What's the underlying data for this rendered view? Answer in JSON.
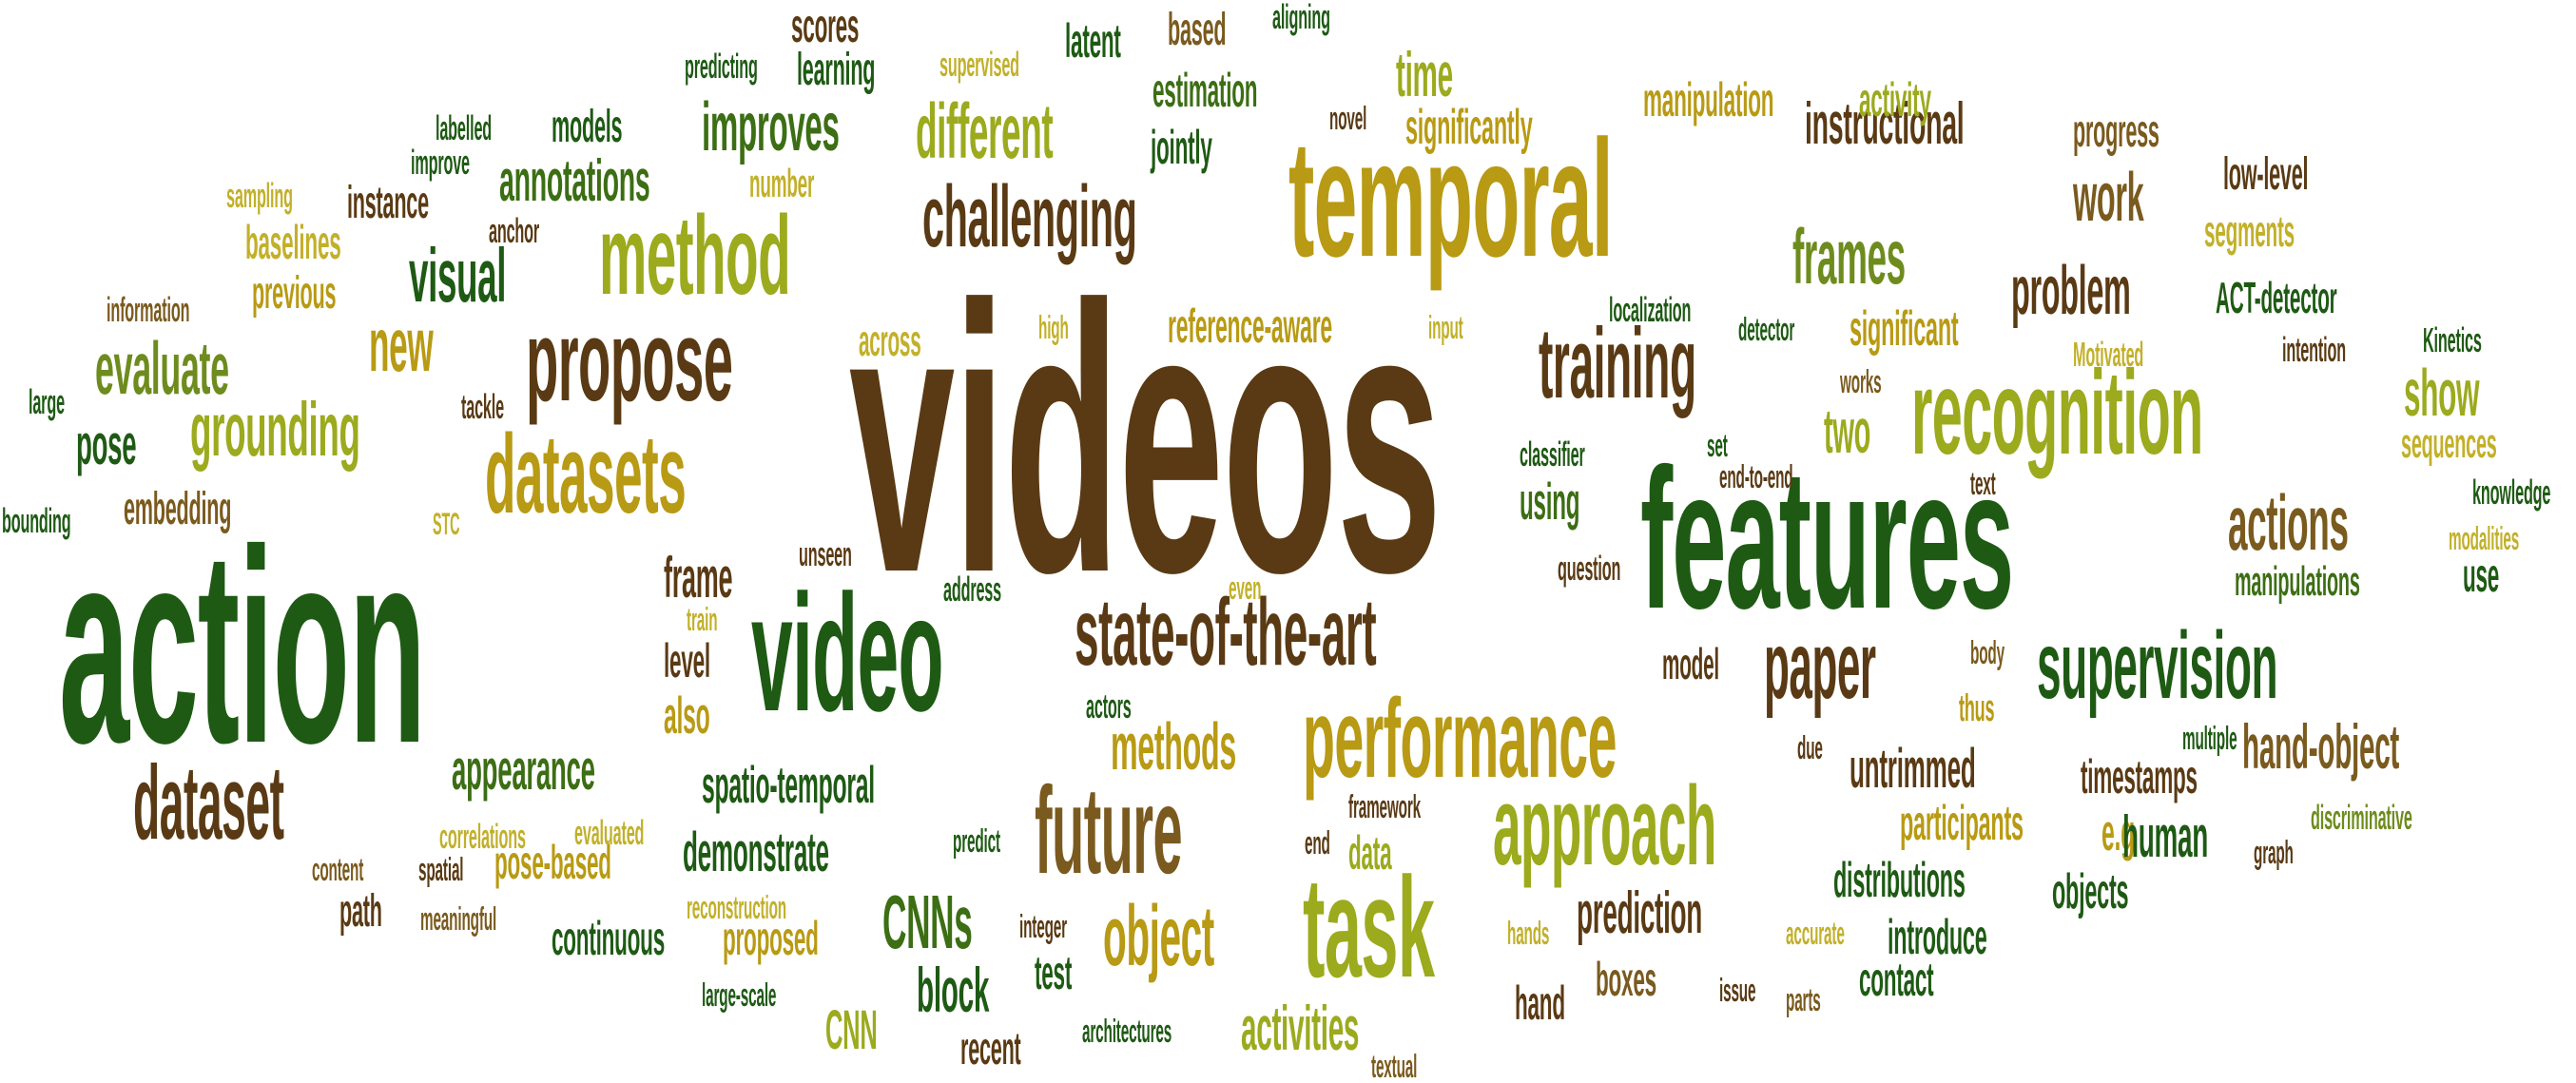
{
  "palette": {
    "dark_brown": "#5a3a14",
    "medium_brown": "#7a5a1e",
    "dark_green": "#1e5a14",
    "medium_green": "#3c6e14",
    "olive_green": "#6e8c1e",
    "lime": "#9caa1e",
    "gold": "#b89a14",
    "khaki": "#c2b02a"
  },
  "words": [
    {
      "text": "videos",
      "color": "dark_brown"
    },
    {
      "text": "action",
      "color": "dark_green"
    },
    {
      "text": "features",
      "color": "dark_green"
    },
    {
      "text": "temporal",
      "color": "gold"
    },
    {
      "text": "video",
      "color": "dark_green"
    },
    {
      "text": "recognition",
      "color": "lime"
    },
    {
      "text": "performance",
      "color": "gold"
    },
    {
      "text": "approach",
      "color": "lime"
    },
    {
      "text": "future",
      "color": "medium_brown"
    },
    {
      "text": "task",
      "color": "lime"
    },
    {
      "text": "propose",
      "color": "dark_brown"
    },
    {
      "text": "datasets",
      "color": "gold"
    },
    {
      "text": "method",
      "color": "lime"
    },
    {
      "text": "state-of-the-art",
      "color": "dark_brown"
    },
    {
      "text": "supervision",
      "color": "dark_green"
    },
    {
      "text": "dataset",
      "color": "dark_brown"
    },
    {
      "text": "challenging",
      "color": "dark_brown"
    },
    {
      "text": "training",
      "color": "dark_brown"
    },
    {
      "text": "paper",
      "color": "dark_brown"
    },
    {
      "text": "actions",
      "color": "medium_brown"
    },
    {
      "text": "frames",
      "color": "olive_green"
    },
    {
      "text": "different",
      "color": "lime"
    },
    {
      "text": "object",
      "color": "gold"
    },
    {
      "text": "grounding",
      "color": "lime"
    },
    {
      "text": "evaluate",
      "color": "olive_green"
    },
    {
      "text": "visual",
      "color": "dark_green"
    },
    {
      "text": "problem",
      "color": "dark_brown"
    },
    {
      "text": "instructional",
      "color": "dark_brown"
    },
    {
      "text": "work",
      "color": "medium_brown"
    },
    {
      "text": "show",
      "color": "lime"
    },
    {
      "text": "new",
      "color": "gold"
    },
    {
      "text": "improves",
      "color": "medium_green"
    },
    {
      "text": "annotations",
      "color": "medium_green"
    },
    {
      "text": "appearance",
      "color": "medium_green"
    },
    {
      "text": "spatio-temporal",
      "color": "dark_green"
    },
    {
      "text": "methods",
      "color": "gold"
    },
    {
      "text": "untrimmed",
      "color": "dark_brown"
    },
    {
      "text": "hand-object",
      "color": "medium_brown"
    },
    {
      "text": "timestamps",
      "color": "dark_brown"
    },
    {
      "text": "participants",
      "color": "gold"
    },
    {
      "text": "e.g",
      "color": "gold"
    },
    {
      "text": "human",
      "color": "dark_green"
    },
    {
      "text": "distributions",
      "color": "dark_green"
    },
    {
      "text": "prediction",
      "color": "dark_brown"
    },
    {
      "text": "introduce",
      "color": "dark_green"
    },
    {
      "text": "objects",
      "color": "dark_green"
    },
    {
      "text": "contact",
      "color": "dark_green"
    },
    {
      "text": "boxes",
      "color": "medium_brown"
    },
    {
      "text": "hand",
      "color": "dark_brown"
    },
    {
      "text": "activities",
      "color": "lime"
    },
    {
      "text": "CNNs",
      "color": "medium_green"
    },
    {
      "text": "block",
      "color": "dark_green"
    },
    {
      "text": "CNN",
      "color": "lime"
    },
    {
      "text": "recent",
      "color": "dark_brown"
    },
    {
      "text": "test",
      "color": "dark_green"
    },
    {
      "text": "demonstrate",
      "color": "dark_green"
    },
    {
      "text": "proposed",
      "color": "gold"
    },
    {
      "text": "continuous",
      "color": "dark_green"
    },
    {
      "text": "pose-based",
      "color": "gold"
    },
    {
      "text": "path",
      "color": "dark_brown"
    },
    {
      "text": "frame",
      "color": "dark_brown"
    },
    {
      "text": "level",
      "color": "dark_brown"
    },
    {
      "text": "also",
      "color": "gold"
    },
    {
      "text": "pose",
      "color": "dark_green"
    },
    {
      "text": "embedding",
      "color": "medium_brown"
    },
    {
      "text": "baselines",
      "color": "khaki"
    },
    {
      "text": "previous",
      "color": "gold"
    },
    {
      "text": "instance",
      "color": "dark_brown"
    },
    {
      "text": "models",
      "color": "dark_green"
    },
    {
      "text": "learning",
      "color": "dark_green"
    },
    {
      "text": "scores",
      "color": "dark_brown"
    },
    {
      "text": "latent",
      "color": "dark_green"
    },
    {
      "text": "based",
      "color": "medium_brown"
    },
    {
      "text": "estimation",
      "color": "medium_green"
    },
    {
      "text": "jointly",
      "color": "dark_green"
    },
    {
      "text": "time",
      "color": "lime"
    },
    {
      "text": "significantly",
      "color": "gold"
    },
    {
      "text": "manipulation",
      "color": "gold"
    },
    {
      "text": "activity",
      "color": "lime"
    },
    {
      "text": "progress",
      "color": "medium_brown"
    },
    {
      "text": "low-level",
      "color": "dark_brown"
    },
    {
      "text": "segments",
      "color": "khaki"
    },
    {
      "text": "ACT-detector",
      "color": "dark_green"
    },
    {
      "text": "significant",
      "color": "gold"
    },
    {
      "text": "two",
      "color": "lime"
    },
    {
      "text": "sequences",
      "color": "khaki"
    },
    {
      "text": "manipulations",
      "color": "medium_green"
    },
    {
      "text": "use",
      "color": "dark_green"
    },
    {
      "text": "thus",
      "color": "gold"
    },
    {
      "text": "reference-aware",
      "color": "gold"
    },
    {
      "text": "across",
      "color": "khaki"
    },
    {
      "text": "using",
      "color": "medium_green"
    },
    {
      "text": "model",
      "color": "dark_brown"
    },
    {
      "text": "data",
      "color": "lime"
    }
  ],
  "small_words": [
    {
      "text": "sampling",
      "color": "khaki"
    },
    {
      "text": "labelled",
      "color": "dark_green"
    },
    {
      "text": "improve",
      "color": "dark_green"
    },
    {
      "text": "information",
      "color": "medium_brown"
    },
    {
      "text": "large",
      "color": "dark_green"
    },
    {
      "text": "tackle",
      "color": "dark_brown"
    },
    {
      "text": "bounding",
      "color": "dark_green"
    },
    {
      "text": "STC",
      "color": "khaki"
    },
    {
      "text": "anchor",
      "color": "dark_brown"
    },
    {
      "text": "predicting",
      "color": "dark_green"
    },
    {
      "text": "supervised",
      "color": "khaki"
    },
    {
      "text": "aligning",
      "color": "dark_green"
    },
    {
      "text": "novel",
      "color": "dark_brown"
    },
    {
      "text": "number",
      "color": "khaki"
    },
    {
      "text": "high",
      "color": "khaki"
    },
    {
      "text": "input",
      "color": "khaki"
    },
    {
      "text": "localization",
      "color": "dark_green"
    },
    {
      "text": "detector",
      "color": "dark_green"
    },
    {
      "text": "Motivated",
      "color": "khaki"
    },
    {
      "text": "intention",
      "color": "dark_brown"
    },
    {
      "text": "Kinetics",
      "color": "dark_green"
    },
    {
      "text": "works",
      "color": "medium_brown"
    },
    {
      "text": "classifier",
      "color": "dark_green"
    },
    {
      "text": "set",
      "color": "dark_green"
    },
    {
      "text": "end-to-end",
      "color": "dark_brown"
    },
    {
      "text": "text",
      "color": "dark_brown"
    },
    {
      "text": "knowledge",
      "color": "dark_green"
    },
    {
      "text": "modalities",
      "color": "khaki"
    },
    {
      "text": "unseen",
      "color": "dark_brown"
    },
    {
      "text": "address",
      "color": "dark_green"
    },
    {
      "text": "even",
      "color": "khaki"
    },
    {
      "text": "question",
      "color": "dark_brown"
    },
    {
      "text": "train",
      "color": "khaki"
    },
    {
      "text": "body",
      "color": "medium_brown"
    },
    {
      "text": "actors",
      "color": "dark_green"
    },
    {
      "text": "multiple",
      "color": "dark_green"
    },
    {
      "text": "due",
      "color": "dark_brown"
    },
    {
      "text": "framework",
      "color": "dark_brown"
    },
    {
      "text": "end",
      "color": "dark_brown"
    },
    {
      "text": "discriminative",
      "color": "olive_green"
    },
    {
      "text": "graph",
      "color": "dark_brown"
    },
    {
      "text": "correlations",
      "color": "khaki"
    },
    {
      "text": "evaluated",
      "color": "khaki"
    },
    {
      "text": "predict",
      "color": "dark_green"
    },
    {
      "text": "content",
      "color": "medium_brown"
    },
    {
      "text": "spatial",
      "color": "dark_brown"
    },
    {
      "text": "reconstruction",
      "color": "khaki"
    },
    {
      "text": "meaningful",
      "color": "medium_brown"
    },
    {
      "text": "integer",
      "color": "dark_brown"
    },
    {
      "text": "hands",
      "color": "khaki"
    },
    {
      "text": "accurate",
      "color": "khaki"
    },
    {
      "text": "large-scale",
      "color": "dark_green"
    },
    {
      "text": "issue",
      "color": "dark_brown"
    },
    {
      "text": "parts",
      "color": "medium_brown"
    },
    {
      "text": "architectures",
      "color": "dark_green"
    },
    {
      "text": "textual",
      "color": "medium_brown"
    }
  ]
}
